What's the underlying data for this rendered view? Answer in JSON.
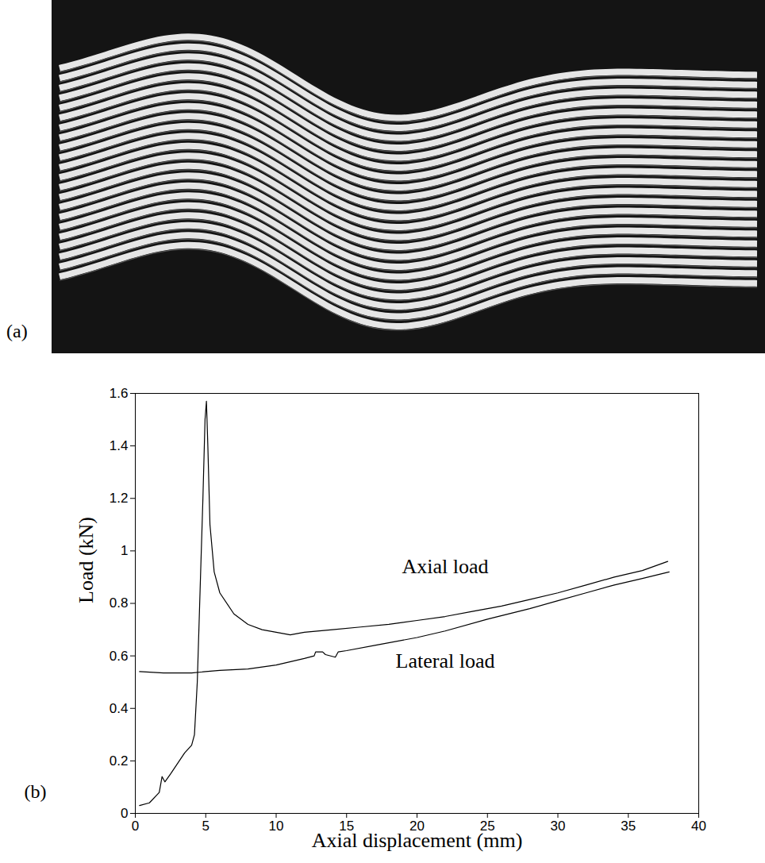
{
  "photo": {
    "panel_label": "(a)"
  },
  "chart_data": {
    "type": "line",
    "panel_label": "(b)",
    "xlabel": "Axial displacement (mm)",
    "ylabel": "Load (kN)",
    "xlim": [
      0,
      40
    ],
    "ylim": [
      0,
      1.6
    ],
    "xticks": [
      0,
      5,
      10,
      15,
      20,
      25,
      30,
      35,
      40
    ],
    "yticks": [
      0,
      0.2,
      0.4,
      0.6,
      0.8,
      1,
      1.2,
      1.4,
      1.6
    ],
    "grid": false,
    "series": [
      {
        "name": "Axial load",
        "color": "#000000",
        "x": [
          0.3,
          1,
          1.7,
          1.9,
          2.1,
          2.5,
          3,
          3.5,
          4,
          4.2,
          4.4,
          4.6,
          4.8,
          4.95,
          5.05,
          5.15,
          5.3,
          5.6,
          6,
          7,
          8,
          9,
          10,
          11,
          12,
          14,
          16,
          18,
          20,
          22,
          24,
          26,
          28,
          30,
          32,
          34,
          36,
          37.8
        ],
        "values": [
          0.03,
          0.04,
          0.08,
          0.14,
          0.12,
          0.15,
          0.19,
          0.23,
          0.26,
          0.3,
          0.5,
          0.85,
          1.2,
          1.5,
          1.57,
          1.4,
          1.1,
          0.92,
          0.84,
          0.76,
          0.72,
          0.7,
          0.69,
          0.68,
          0.69,
          0.7,
          0.71,
          0.72,
          0.735,
          0.75,
          0.77,
          0.79,
          0.815,
          0.84,
          0.87,
          0.9,
          0.925,
          0.96
        ]
      },
      {
        "name": "Lateral load",
        "color": "#000000",
        "x": [
          0.3,
          2,
          4,
          5,
          6,
          8,
          10,
          12,
          12.7,
          12.8,
          13.3,
          13.5,
          14.2,
          14.4,
          15,
          17,
          20,
          22,
          25,
          28,
          30,
          32,
          34,
          36,
          37.9
        ],
        "values": [
          0.54,
          0.535,
          0.535,
          0.54,
          0.545,
          0.55,
          0.565,
          0.59,
          0.6,
          0.615,
          0.615,
          0.605,
          0.595,
          0.615,
          0.62,
          0.64,
          0.67,
          0.695,
          0.74,
          0.78,
          0.81,
          0.84,
          0.87,
          0.895,
          0.92
        ]
      }
    ],
    "annotations": [
      {
        "text": "Axial load",
        "x": 22,
        "y": 0.94
      },
      {
        "text": "Lateral load",
        "x": 22,
        "y": 0.58
      }
    ]
  }
}
